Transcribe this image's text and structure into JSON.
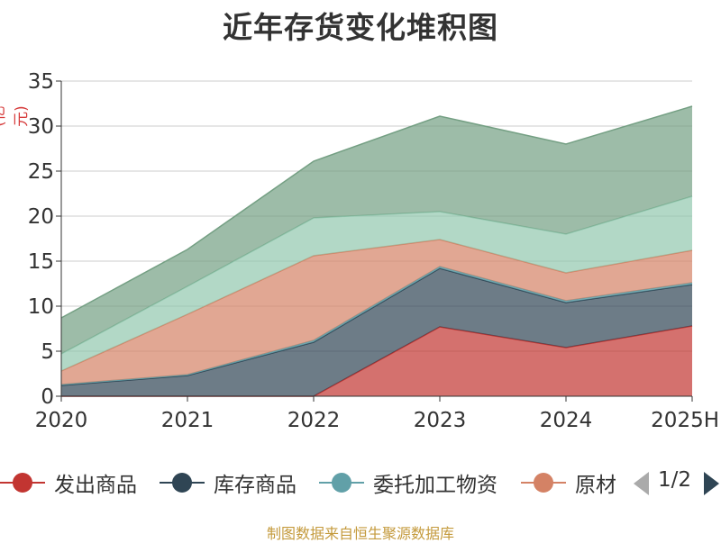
{
  "chart_data": {
    "type": "area",
    "stacked": true,
    "title": "近年存货变化堆积图",
    "ylabel": "(亿元)",
    "xlabel": "",
    "categories": [
      "2020",
      "2021",
      "2022",
      "2023",
      "2024",
      "2025H"
    ],
    "ylim": [
      0,
      35
    ],
    "yticks": [
      0,
      5,
      10,
      15,
      20,
      25,
      30,
      35
    ],
    "grid": true,
    "legend_position": "bottom",
    "series": [
      {
        "name": "发出商品",
        "color": "#c23531",
        "values": [
          0,
          0,
          0,
          7.7,
          5.4,
          7.8
        ]
      },
      {
        "name": "库存商品",
        "color": "#2f4554",
        "values": [
          1.2,
          2.3,
          6.0,
          6.5,
          5.0,
          4.6
        ]
      },
      {
        "name": "委托加工物资",
        "color": "#61a0a8",
        "values": [
          0.1,
          0.1,
          0.2,
          0.2,
          0.2,
          0.2
        ]
      },
      {
        "name": "原材料",
        "color": "#d48265",
        "values": [
          1.5,
          6.7,
          9.4,
          3.0,
          3.1,
          3.6
        ]
      },
      {
        "color": "#91c7ae",
        "values": [
          1.9,
          3.1,
          4.2,
          3.1,
          4.3,
          6.0
        ]
      },
      {
        "color": "#749f83",
        "values": [
          4.0,
          4.1,
          6.3,
          10.6,
          10.0,
          10.0
        ]
      }
    ]
  },
  "legend": {
    "page_text": "1/2"
  },
  "source_note": "制图数据来自恒生聚源数据库"
}
